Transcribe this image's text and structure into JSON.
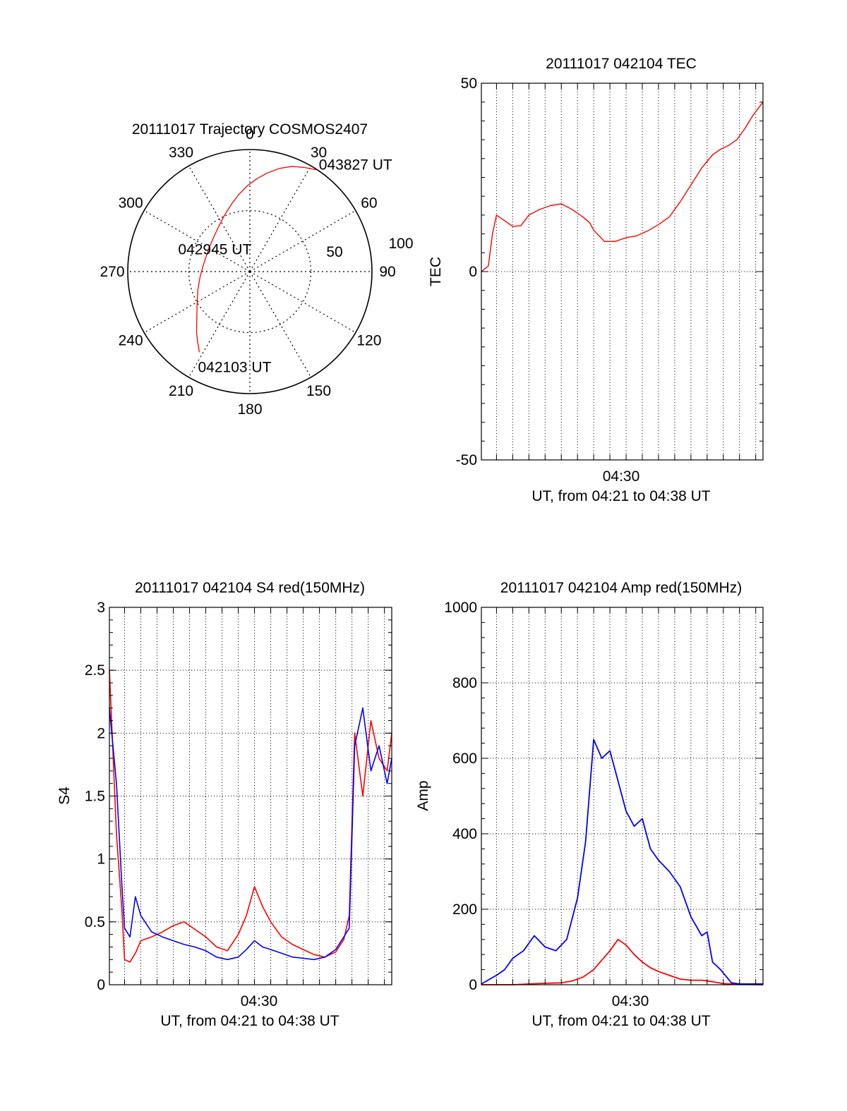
{
  "colors": {
    "red": "#ff0000",
    "blue": "#0000ff",
    "grid": "#000000",
    "background": "#ffffff"
  },
  "chart_data": [
    {
      "id": "trajectory",
      "type": "polar",
      "title": "20111017 Trajectory COSMOS2407",
      "azimuth_labels": [
        "0",
        "30",
        "60",
        "90",
        "120",
        "150",
        "180",
        "210",
        "240",
        "270",
        "300",
        "330"
      ],
      "radial_rings": [
        50,
        100
      ],
      "radial_labels": [
        "50",
        "100"
      ],
      "grid": true,
      "series": [
        {
          "color": "#ff0000",
          "points_az_r": [
            [
              212.0,
              78.0
            ],
            [
              216.0,
              72.5
            ],
            [
              221.0,
              66.5
            ],
            [
              228.0,
              58.5
            ],
            [
              238.0,
              51.0
            ],
            [
              251.0,
              45.0
            ],
            [
              264.0,
              41.0
            ],
            [
              277.0,
              38.6
            ],
            [
              290.0,
              37.9
            ],
            [
              303.0,
              38.9
            ],
            [
              315.0,
              41.3
            ],
            [
              326.0,
              45.2
            ],
            [
              336.0,
              50.8
            ],
            [
              345.0,
              57.5
            ],
            [
              352.0,
              64.0
            ],
            [
              358.0,
              70.0
            ],
            [
              4.0,
              76.0
            ],
            [
              10.0,
              82.0
            ],
            [
              16.0,
              88.0
            ],
            [
              22.0,
              93.0
            ],
            [
              28.0,
              96.5
            ],
            [
              33.0,
              99.5
            ]
          ]
        }
      ],
      "annotations": [
        {
          "text": "043827 UT",
          "at_az": 33.0,
          "at_r": 99.5
        },
        {
          "text": "042945 UT",
          "at_az": 290.0,
          "at_r": 37.9
        },
        {
          "text": "042103 UT",
          "at_az": 212.0,
          "at_r": 78.0
        }
      ]
    },
    {
      "id": "tec",
      "type": "line",
      "title": "20111017 042104 TEC",
      "xlabel": "UT, from 04:21 to 04:38 UT",
      "ylabel": "TEC",
      "xlim": [
        "04:21:04",
        "04:38:27"
      ],
      "ylim": [
        -50,
        50
      ],
      "yticks": [
        "50",
        "0",
        "-50"
      ],
      "xticks": [
        "04:30"
      ],
      "grid": true,
      "series": [
        {
          "color": "#ff0000",
          "x": [
            "04:21:04",
            "04:21:30",
            "04:21:45",
            "04:22:00",
            "04:22:30",
            "04:23:00",
            "04:23:30",
            "04:24:00",
            "04:24:40",
            "04:25:20",
            "04:26:00",
            "04:26:40",
            "04:27:20",
            "04:27:45",
            "04:28:00",
            "04:28:40",
            "04:29:20",
            "04:30:00",
            "04:30:40",
            "04:31:20",
            "04:32:00",
            "04:32:40",
            "04:33:20",
            "04:34:00",
            "04:34:40",
            "04:35:20",
            "04:35:50",
            "04:36:20",
            "04:36:50",
            "04:37:20",
            "04:37:50",
            "04:38:27"
          ],
          "values": [
            0.0,
            1.5,
            10.0,
            15.0,
            13.5,
            12.0,
            12.2,
            15.0,
            16.5,
            17.5,
            18.0,
            16.5,
            14.5,
            13.0,
            11.0,
            8.0,
            8.0,
            9.0,
            9.5,
            10.8,
            12.5,
            14.5,
            18.5,
            23.0,
            27.5,
            31.0,
            32.5,
            33.5,
            35.0,
            38.0,
            41.5,
            45.0
          ]
        }
      ]
    },
    {
      "id": "s4",
      "type": "line",
      "title": "20111017 042104 S4 red(150MHz)",
      "xlabel": "UT, from 04:21 to 04:38 UT",
      "ylabel": "S4",
      "xlim": [
        "04:21:04",
        "04:38:27"
      ],
      "ylim": [
        0,
        3
      ],
      "yticks": [
        "0",
        "0.5",
        "1",
        "1.5",
        "2",
        "2.5",
        "3"
      ],
      "xticks": [
        "04:30"
      ],
      "grid": true,
      "series": [
        {
          "color": "#ff0000",
          "x": [
            "04:21:04",
            "04:21:30",
            "04:21:50",
            "04:22:00",
            "04:22:20",
            "04:22:40",
            "04:23:00",
            "04:23:40",
            "04:24:20",
            "04:25:00",
            "04:25:40",
            "04:26:20",
            "04:27:00",
            "04:27:40",
            "04:28:20",
            "04:29:00",
            "04:29:30",
            "04:30:00",
            "04:30:30",
            "04:31:00",
            "04:31:40",
            "04:32:20",
            "04:33:00",
            "04:33:40",
            "04:34:20",
            "04:35:00",
            "04:35:30",
            "04:35:50",
            "04:36:10",
            "04:36:40",
            "04:37:10",
            "04:37:40",
            "04:38:10",
            "04:38:27"
          ],
          "values": [
            2.5,
            1.2,
            0.6,
            0.2,
            0.18,
            0.25,
            0.35,
            0.38,
            0.42,
            0.47,
            0.5,
            0.44,
            0.38,
            0.3,
            0.27,
            0.4,
            0.55,
            0.78,
            0.62,
            0.5,
            0.38,
            0.32,
            0.28,
            0.24,
            0.22,
            0.26,
            0.36,
            0.55,
            2.0,
            1.5,
            2.1,
            1.8,
            1.7,
            2.0
          ]
        },
        {
          "color": "#0000ff",
          "x": [
            "04:21:04",
            "04:21:30",
            "04:21:50",
            "04:22:00",
            "04:22:20",
            "04:22:40",
            "04:23:00",
            "04:23:40",
            "04:24:20",
            "04:25:00",
            "04:25:40",
            "04:26:20",
            "04:27:00",
            "04:27:40",
            "04:28:20",
            "04:29:00",
            "04:29:30",
            "04:30:00",
            "04:30:30",
            "04:31:00",
            "04:31:40",
            "04:32:20",
            "04:33:00",
            "04:33:40",
            "04:34:20",
            "04:35:00",
            "04:35:30",
            "04:35:50",
            "04:36:10",
            "04:36:40",
            "04:37:10",
            "04:37:40",
            "04:38:10",
            "04:38:27"
          ],
          "values": [
            2.2,
            1.6,
            0.8,
            0.45,
            0.38,
            0.7,
            0.55,
            0.42,
            0.38,
            0.35,
            0.32,
            0.3,
            0.27,
            0.22,
            0.2,
            0.22,
            0.28,
            0.35,
            0.3,
            0.28,
            0.25,
            0.22,
            0.21,
            0.2,
            0.22,
            0.28,
            0.38,
            0.45,
            1.9,
            2.2,
            1.7,
            1.9,
            1.6,
            1.8
          ]
        }
      ]
    },
    {
      "id": "amp",
      "type": "line",
      "title": "20111017 042104 Amp red(150MHz)",
      "xlabel": "UT, from 04:21 to 04:38 UT",
      "ylabel": "Amp",
      "xlim": [
        "04:21:04",
        "04:38:27"
      ],
      "ylim": [
        0,
        1000
      ],
      "yticks": [
        "0",
        "200",
        "400",
        "600",
        "800",
        "1000"
      ],
      "xticks": [
        "04:30"
      ],
      "grid": true,
      "series": [
        {
          "color": "#ff0000",
          "x": [
            "04:21:04",
            "04:22:00",
            "04:23:00",
            "04:24:00",
            "04:25:00",
            "04:26:00",
            "04:26:40",
            "04:27:20",
            "04:28:00",
            "04:28:30",
            "04:29:00",
            "04:29:30",
            "04:30:00",
            "04:30:30",
            "04:31:00",
            "04:31:30",
            "04:32:00",
            "04:32:40",
            "04:33:20",
            "04:34:00",
            "04:34:40",
            "04:35:20",
            "04:36:00",
            "04:37:00",
            "04:38:27"
          ],
          "values": [
            0,
            0,
            0,
            2,
            4,
            5,
            10,
            20,
            40,
            65,
            90,
            120,
            105,
            80,
            60,
            45,
            35,
            25,
            15,
            12,
            12,
            8,
            3,
            1,
            0
          ]
        },
        {
          "color": "#0000ff",
          "x": [
            "04:21:04",
            "04:22:00",
            "04:22:30",
            "04:23:00",
            "04:23:40",
            "04:24:20",
            "04:25:00",
            "04:25:40",
            "04:26:20",
            "04:27:00",
            "04:27:30",
            "04:28:00",
            "04:28:30",
            "04:29:00",
            "04:29:30",
            "04:30:00",
            "04:30:30",
            "04:31:00",
            "04:31:30",
            "04:32:00",
            "04:32:40",
            "04:33:20",
            "04:34:00",
            "04:34:40",
            "04:35:00",
            "04:35:20",
            "04:35:50",
            "04:36:30",
            "04:37:00",
            "04:38:27"
          ],
          "values": [
            2,
            25,
            40,
            70,
            90,
            130,
            100,
            90,
            120,
            230,
            380,
            650,
            600,
            620,
            540,
            460,
            420,
            440,
            360,
            330,
            300,
            260,
            180,
            130,
            140,
            60,
            40,
            5,
            2,
            2
          ]
        }
      ]
    }
  ]
}
